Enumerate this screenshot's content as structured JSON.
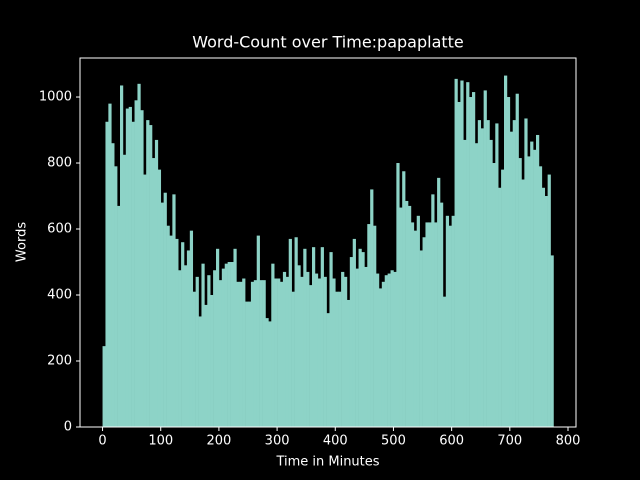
{
  "chart_data": {
    "type": "histogram",
    "title": "Word-Count over Time:papaplatte",
    "xlabel": "Time in Minutes",
    "ylabel": "Words",
    "color": "#8dd3c7",
    "bins": [
      0,
      5,
      10,
      15,
      20,
      25,
      30,
      35,
      40,
      45,
      50,
      55,
      60,
      65,
      70,
      75,
      80,
      85,
      90,
      95,
      100,
      105,
      110,
      115,
      120,
      125,
      130,
      135,
      140,
      145,
      150,
      155,
      160,
      165,
      170,
      175,
      180,
      185,
      190,
      195,
      200,
      205,
      210,
      215,
      220,
      225,
      230,
      235,
      240,
      245,
      250,
      255,
      260,
      265,
      270,
      275,
      280,
      285,
      290,
      295,
      300,
      305,
      310,
      315,
      320,
      325,
      330,
      335,
      340,
      345,
      350,
      355,
      360,
      365,
      370,
      375,
      380,
      385,
      390,
      395,
      400,
      405,
      410,
      415,
      420,
      425,
      430,
      435,
      440,
      445,
      450,
      455,
      460,
      465,
      470,
      475,
      480,
      485,
      490,
      495,
      500,
      505,
      510,
      515,
      520,
      525,
      530,
      535,
      540,
      545,
      550,
      555,
      560,
      565,
      570,
      575,
      580,
      585,
      590,
      595,
      600,
      605,
      610,
      615,
      620,
      625,
      630,
      635,
      640,
      645,
      650,
      655,
      660,
      665,
      670,
      675,
      680,
      685,
      690,
      695,
      700,
      705,
      710,
      715,
      720,
      725,
      730,
      735,
      740,
      745,
      750,
      755,
      760,
      765,
      770,
      775
    ],
    "values": [
      245,
      925,
      980,
      860,
      790,
      670,
      1035,
      825,
      965,
      970,
      925,
      990,
      1040,
      960,
      765,
      930,
      915,
      815,
      870,
      780,
      680,
      710,
      610,
      580,
      705,
      570,
      475,
      560,
      490,
      535,
      595,
      410,
      455,
      335,
      495,
      370,
      460,
      400,
      475,
      540,
      445,
      480,
      495,
      500,
      500,
      540,
      440,
      440,
      450,
      380,
      380,
      440,
      445,
      580,
      445,
      445,
      330,
      320,
      495,
      450,
      450,
      440,
      470,
      455,
      570,
      410,
      575,
      490,
      455,
      540,
      470,
      430,
      545,
      465,
      450,
      545,
      455,
      345,
      530,
      450,
      410,
      410,
      470,
      455,
      385,
      515,
      570,
      480,
      540,
      530,
      485,
      615,
      720,
      610,
      465,
      420,
      440,
      460,
      465,
      475,
      470,
      800,
      665,
      775,
      685,
      670,
      620,
      595,
      640,
      535,
      575,
      620,
      620,
      705,
      620,
      755,
      680,
      395,
      640,
      610,
      640,
      1055,
      985,
      1050,
      870,
      1045,
      1000,
      1015,
      860,
      930,
      905,
      1020,
      930,
      870,
      800,
      920,
      725,
      780,
      1065,
      1000,
      895,
      930,
      1010,
      815,
      750,
      935,
      820,
      865,
      840,
      885,
      790,
      725,
      700,
      765,
      520
    ],
    "xlim": [
      -38.75,
      813.75
    ],
    "xticks": [
      0,
      100,
      200,
      300,
      400,
      500,
      600,
      700,
      800
    ],
    "ylim": [
      0,
      1118.25
    ],
    "yticks": [
      0,
      200,
      400,
      600,
      800,
      1000
    ]
  }
}
